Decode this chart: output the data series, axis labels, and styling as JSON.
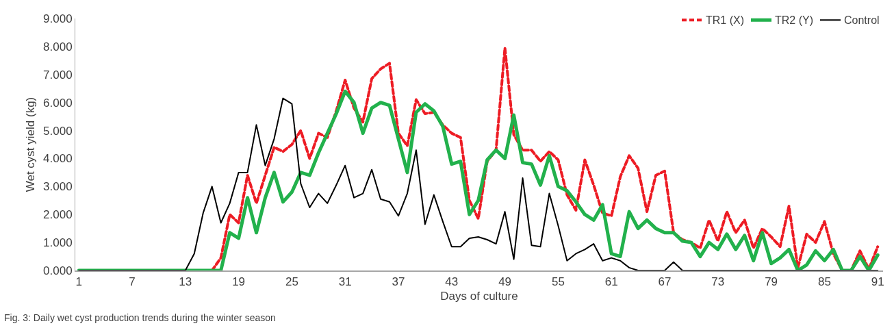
{
  "chart_data": {
    "type": "line",
    "xlabel": "Days of culture",
    "ylabel": "Wet cyst yield (kg)",
    "annotations": [
      "Fig. 3: Daily wet cyst production trends during the winter season"
    ],
    "x": [
      1,
      2,
      3,
      4,
      5,
      6,
      7,
      8,
      9,
      10,
      11,
      12,
      13,
      14,
      15,
      16,
      17,
      18,
      19,
      20,
      21,
      22,
      23,
      24,
      25,
      26,
      27,
      28,
      29,
      30,
      31,
      32,
      33,
      34,
      35,
      36,
      37,
      38,
      39,
      40,
      41,
      42,
      43,
      44,
      45,
      46,
      47,
      48,
      49,
      50,
      51,
      52,
      53,
      54,
      55,
      56,
      57,
      58,
      59,
      60,
      61,
      62,
      63,
      64,
      65,
      66,
      67,
      68,
      69,
      70,
      71,
      72,
      73,
      74,
      75,
      76,
      77,
      78,
      79,
      80,
      81,
      82,
      83,
      84,
      85,
      86,
      87,
      88,
      89,
      90,
      91
    ],
    "series": [
      {
        "name": "TR1 (X)",
        "color": "#ed1c24",
        "line_style": "dashed",
        "values": [
          null,
          null,
          null,
          null,
          null,
          null,
          null,
          null,
          null,
          null,
          null,
          null,
          null,
          null,
          null,
          0,
          0.45,
          2.0,
          1.7,
          3.4,
          2.4,
          3.4,
          4.4,
          4.25,
          4.5,
          5.0,
          4.0,
          4.9,
          4.75,
          5.7,
          6.8,
          5.8,
          5.3,
          6.85,
          7.2,
          7.4,
          4.9,
          4.45,
          6.1,
          5.6,
          5.65,
          5.2,
          4.9,
          4.75,
          2.5,
          1.85,
          3.9,
          4.3,
          7.95,
          4.85,
          4.3,
          4.3,
          3.9,
          4.25,
          3.95,
          2.7,
          2.15,
          3.95,
          3.05,
          2.05,
          1.95,
          3.35,
          4.1,
          3.65,
          2.1,
          3.4,
          3.55,
          1.35,
          1.1,
          1.0,
          0.8,
          1.8,
          1.05,
          2.1,
          1.35,
          1.8,
          0.8,
          1.5,
          1.2,
          0.85,
          2.3,
          0.1,
          1.3,
          1.0,
          1.75,
          0.6,
          0,
          0,
          0.7,
          0.05,
          0.85
        ]
      },
      {
        "name": "TR2 (Y)",
        "color": "#22b14c",
        "line_style": "solid",
        "values": [
          0,
          0,
          0,
          0,
          0,
          0,
          0,
          0,
          0,
          0,
          0,
          0,
          0,
          0,
          0,
          0,
          0,
          1.35,
          1.15,
          2.6,
          1.35,
          2.6,
          3.5,
          2.45,
          2.8,
          3.5,
          3.4,
          4.2,
          4.9,
          5.6,
          6.4,
          6.0,
          4.9,
          5.8,
          6.0,
          5.9,
          4.7,
          3.5,
          5.65,
          5.95,
          5.7,
          5.15,
          3.8,
          3.9,
          2.0,
          2.5,
          3.95,
          4.3,
          4.0,
          5.55,
          3.85,
          3.8,
          3.05,
          4.1,
          3.0,
          2.85,
          2.45,
          2.0,
          1.8,
          2.35,
          0.6,
          0.5,
          2.1,
          1.5,
          1.8,
          1.5,
          1.35,
          1.35,
          1.05,
          1.0,
          0.5,
          1.0,
          0.75,
          1.3,
          0.75,
          1.25,
          0.35,
          1.35,
          0.25,
          0.45,
          0.75,
          0,
          0.2,
          0.7,
          0.35,
          0.75,
          0,
          0,
          0.5,
          0,
          0.55
        ]
      },
      {
        "name": "Control",
        "color": "#000000",
        "line_style": "solid",
        "values": [
          0,
          0,
          0,
          0,
          0,
          0,
          0,
          0,
          0,
          0,
          0,
          0,
          0,
          0.6,
          2.05,
          3.0,
          1.7,
          2.4,
          3.5,
          3.5,
          5.2,
          3.75,
          4.7,
          6.15,
          5.95,
          3.1,
          2.25,
          2.75,
          2.4,
          3.05,
          3.75,
          2.6,
          2.75,
          3.6,
          2.55,
          2.45,
          1.95,
          2.75,
          4.3,
          1.65,
          2.7,
          1.75,
          0.85,
          0.85,
          1.15,
          1.2,
          1.1,
          0.95,
          2.1,
          0.4,
          3.3,
          0.9,
          0.85,
          2.75,
          1.6,
          0.35,
          0.6,
          0.75,
          0.95,
          0.35,
          0.45,
          0.35,
          0.1,
          0,
          0,
          0,
          0,
          0.3,
          0,
          0,
          0,
          0,
          0,
          0,
          0,
          0,
          0,
          0,
          0,
          0,
          0,
          0,
          0,
          0,
          0,
          0,
          0,
          0,
          0,
          0,
          0
        ]
      }
    ],
    "xlim": [
      0.6,
      91.6
    ],
    "xticks": [
      1,
      7,
      13,
      19,
      25,
      31,
      37,
      43,
      49,
      55,
      61,
      67,
      73,
      79,
      85,
      91
    ],
    "ylim": [
      0,
      9
    ],
    "yticks": [
      {
        "value": 0,
        "label": "0.000"
      },
      {
        "value": 1,
        "label": "1.000"
      },
      {
        "value": 2,
        "label": "2.000"
      },
      {
        "value": 3,
        "label": "3.000"
      },
      {
        "value": 4,
        "label": "4.000"
      },
      {
        "value": 5,
        "label": "5.000"
      },
      {
        "value": 6,
        "label": "6.000"
      },
      {
        "value": 7,
        "label": "7.000"
      },
      {
        "value": 8,
        "label": "8.000"
      },
      {
        "value": 9,
        "label": "9.000"
      }
    ],
    "legend": "top right",
    "marker": "none"
  }
}
